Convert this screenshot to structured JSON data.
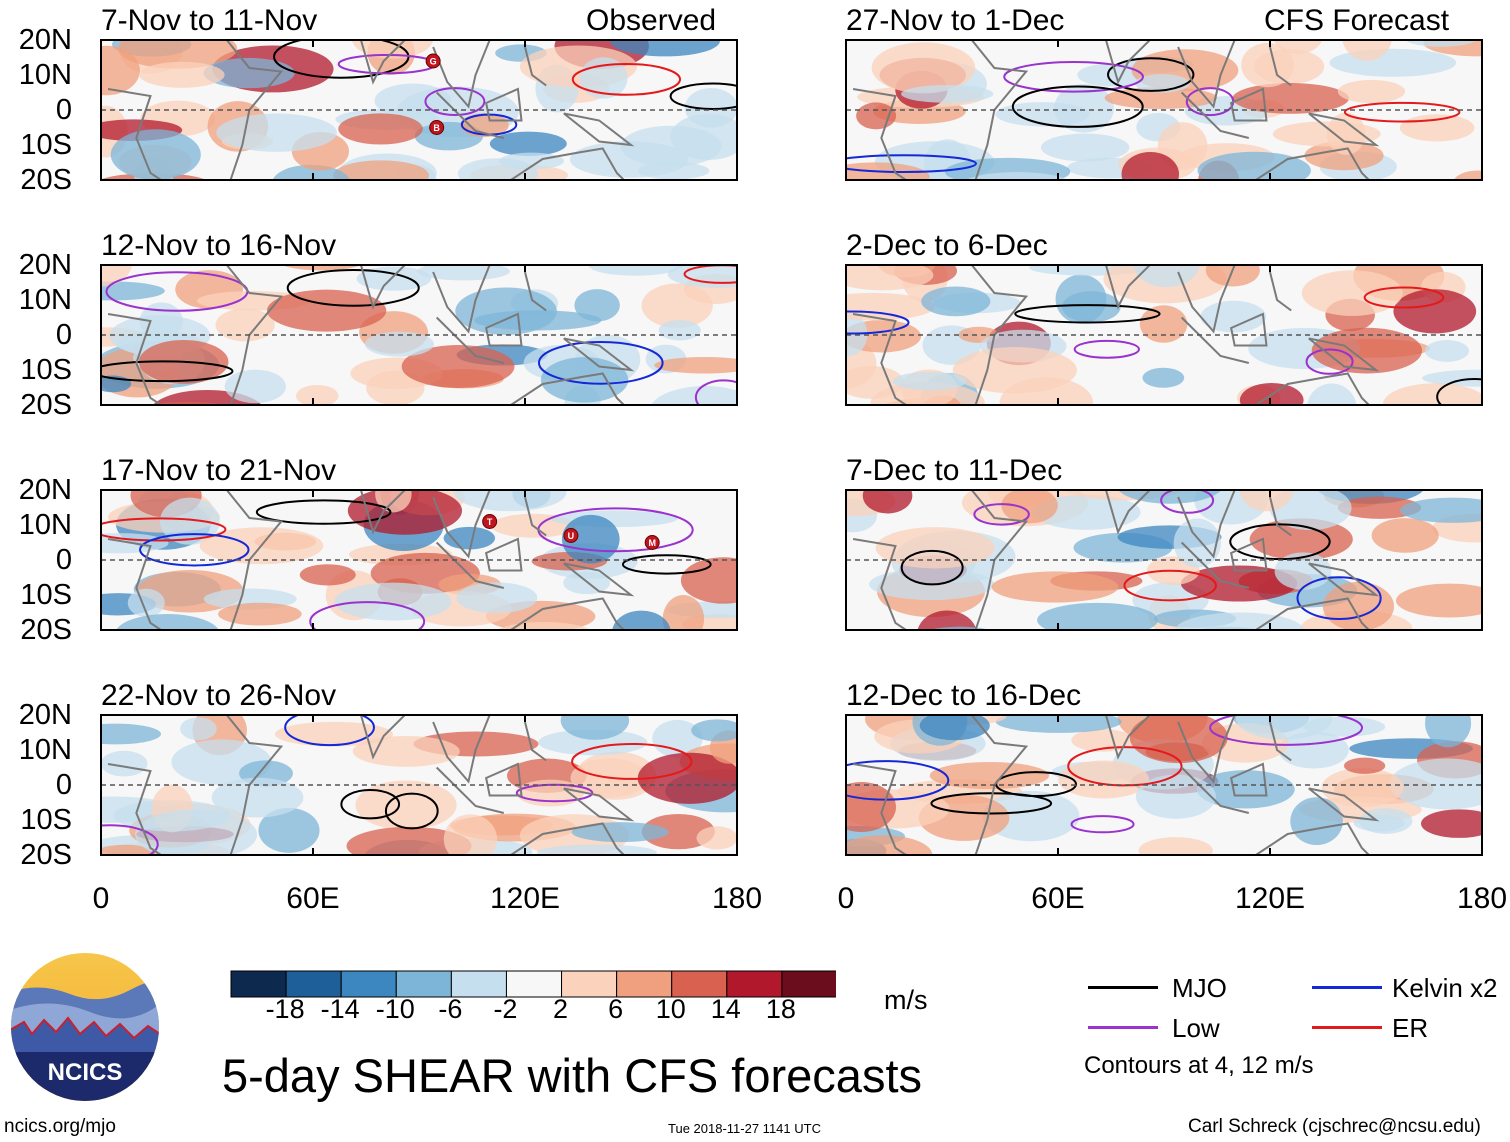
{
  "chart_data": {
    "type": "heatmap",
    "title": "5-day SHEAR with CFS forecasts",
    "units": "m/s",
    "x_ticks": [
      "0",
      "60E",
      "120E",
      "180"
    ],
    "y_ticks": [
      "20N",
      "10N",
      "0",
      "10S",
      "20S"
    ],
    "xlim": [
      0,
      180
    ],
    "ylim": [
      -20,
      20
    ],
    "colorbar": {
      "labels": [
        "-18",
        "-14",
        "-10",
        "-6",
        "-2",
        "2",
        "6",
        "10",
        "14",
        "18"
      ],
      "colors": [
        "#0d2a4e",
        "#1f5f99",
        "#3d87c0",
        "#7db5d8",
        "#c6dfee",
        "#f7f7f7",
        "#fbd2bb",
        "#f0a07e",
        "#d8624f",
        "#b2182b",
        "#6b0d1d"
      ]
    },
    "observed_label": "Observed",
    "forecast_label": "CFS Forecast",
    "panels": [
      {
        "period": "7-Nov to 11-Nov",
        "column": "observed"
      },
      {
        "period": "12-Nov to 16-Nov",
        "column": "observed"
      },
      {
        "period": "17-Nov to 21-Nov",
        "column": "observed"
      },
      {
        "period": "22-Nov to 26-Nov",
        "column": "observed"
      },
      {
        "period": "27-Nov to 1-Dec",
        "column": "forecast"
      },
      {
        "period": "2-Dec to 6-Dec",
        "column": "forecast"
      },
      {
        "period": "7-Dec to 11-Dec",
        "column": "forecast"
      },
      {
        "period": "12-Dec to 16-Dec",
        "column": "forecast"
      }
    ],
    "storm_markers": [
      {
        "panel": 0,
        "letter": "G",
        "lon": 94,
        "lat": 14
      },
      {
        "panel": 0,
        "letter": "B",
        "lon": 95,
        "lat": -5
      },
      {
        "panel": 2,
        "letter": "T",
        "lon": 110,
        "lat": 11
      },
      {
        "panel": 2,
        "letter": "U",
        "lon": 133,
        "lat": 7
      },
      {
        "panel": 2,
        "letter": "M",
        "lon": 156,
        "lat": 5
      }
    ],
    "legend": [
      {
        "label": "MJO",
        "color": "#000000"
      },
      {
        "label": "Kelvin x2",
        "color": "#1428d8"
      },
      {
        "label": "Low",
        "color": "#9a32cd"
      },
      {
        "label": "ER",
        "color": "#e31a1c"
      }
    ],
    "contour_note": "Contours at 4, 12 m/s"
  },
  "logo_text": "NCICS",
  "footer": {
    "left": "ncics.org/mjo",
    "middle": "Tue 2018-11-27 1141 UTC",
    "right": "Carl Schreck (cjschrec@ncsu.edu)"
  }
}
